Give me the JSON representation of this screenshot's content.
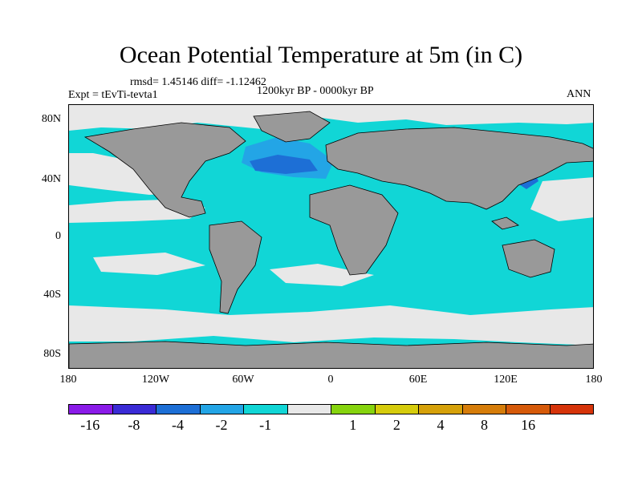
{
  "title": "Ocean Potential Temperature at 5m (in C)",
  "stats": "rmsd= 1.45146 diff= -1.12462",
  "left_label": "Expt = tEvTi-tevta1",
  "center_label": "1200kyr BP - 0000kyr BP",
  "right_label": "ANN",
  "y_ticks": [
    "80N",
    "40N",
    "0",
    "40S",
    "80S"
  ],
  "x_ticks": [
    "180",
    "120W",
    "60W",
    "0",
    "60E",
    "120E",
    "180"
  ],
  "colorbar": {
    "colors": [
      "#8a1be8",
      "#3a2bd6",
      "#1d6fd6",
      "#23a5e6",
      "#11d6d6",
      "#e8e8e8",
      "#86d40e",
      "#d6cc0c",
      "#d6a10a",
      "#d67d0a",
      "#d65a0a",
      "#d6340a"
    ],
    "labels": [
      "-16",
      "-8",
      "-4",
      "-2",
      "-1",
      "1",
      "2",
      "4",
      "8",
      "16"
    ]
  },
  "colors": {
    "land": "#999999",
    "ocean_minus1": "#11d6d6",
    "ocean_near0": "#e8e8e8",
    "ocean_minus2": "#23a5e6",
    "ocean_minus4": "#1d6fd6",
    "warm_plus2": "#86d40e"
  }
}
